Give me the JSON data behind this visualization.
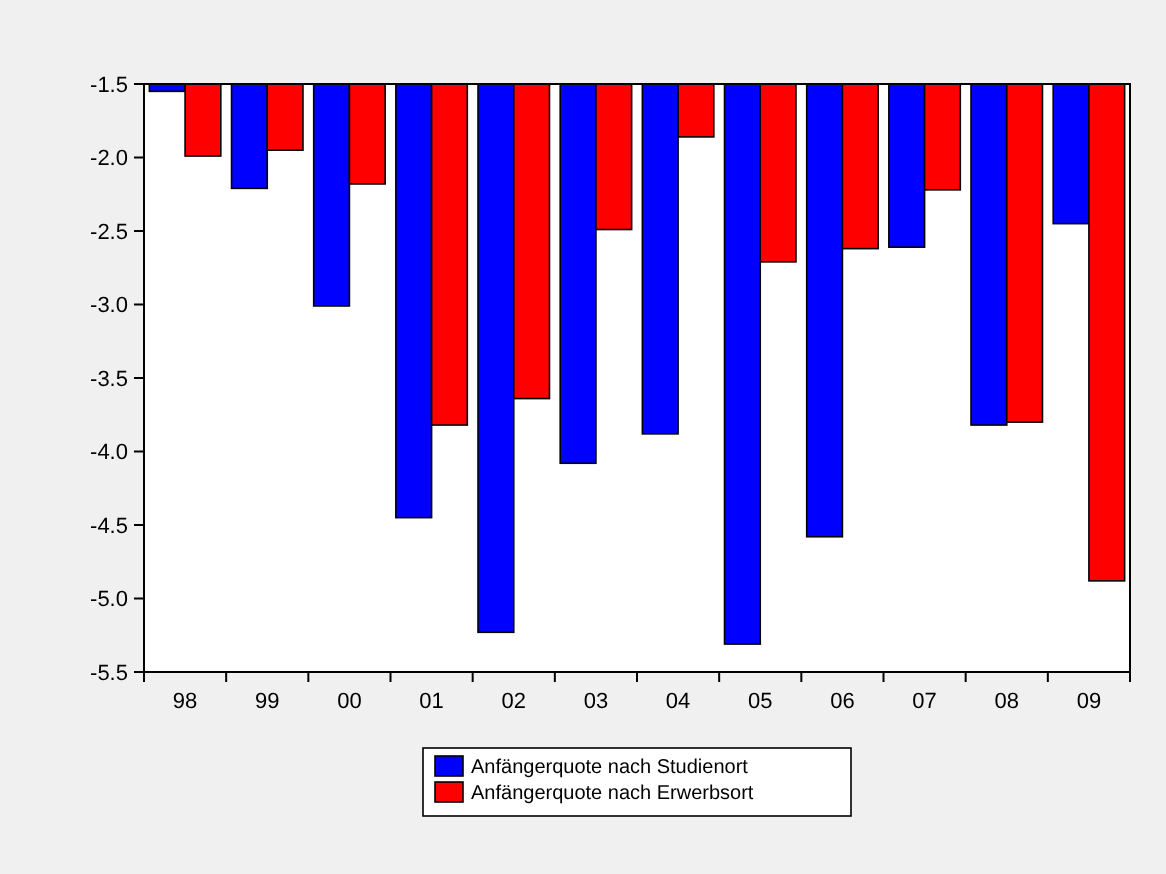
{
  "chart_data": {
    "type": "bar",
    "categories": [
      "98",
      "99",
      "00",
      "01",
      "02",
      "03",
      "04",
      "05",
      "06",
      "07",
      "08",
      "09"
    ],
    "series": [
      {
        "name": "Anfängerquote nach Studienort",
        "color": "#0000ff",
        "values": [
          -1.55,
          -2.21,
          -3.01,
          -4.45,
          -5.23,
          -4.08,
          -3.88,
          -5.31,
          -4.58,
          -2.61,
          -3.82,
          -2.45
        ]
      },
      {
        "name": "Anfängerquote nach Erwerbsort",
        "color": "#ff0000",
        "values": [
          -1.99,
          -1.95,
          -2.18,
          -3.82,
          -3.64,
          -2.49,
          -1.86,
          -2.71,
          -2.62,
          -2.22,
          -3.8,
          -4.88
        ]
      }
    ],
    "ylim": [
      -5.5,
      -1.5
    ],
    "yticks": [
      {
        "value": -5.5,
        "label": "-5.5"
      },
      {
        "value": -5,
        "label": "-5.0"
      },
      {
        "value": -4.5,
        "label": "-4.5"
      },
      {
        "value": -4,
        "label": "-4.0"
      },
      {
        "value": -3.5,
        "label": "-3.5"
      },
      {
        "value": -3,
        "label": "-3.0"
      },
      {
        "value": -2.5,
        "label": "-2.5"
      },
      {
        "value": -2,
        "label": "-2.0"
      },
      {
        "value": -1.5,
        "label": "-1.5"
      }
    ],
    "grid": false,
    "legend": "bottom"
  }
}
